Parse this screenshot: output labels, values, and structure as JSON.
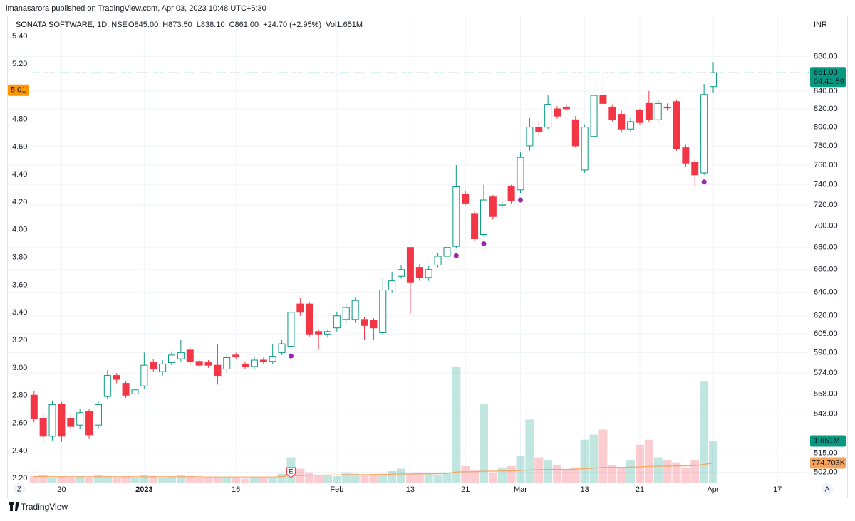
{
  "header": "imanasarora published on TradingView.com, Apr 03, 2023 10:48 UTC+5:30",
  "footer": "TradingView",
  "chart_data": {
    "type": "candlestick",
    "legend": {
      "symbol": "SONATA SOFTWARE, 1D, NSE",
      "open": "O845.00",
      "high": "H873.50",
      "low": "L838.10",
      "close": "C861.00",
      "change": "+24.70 (+2.95%)",
      "volume": "Vol1.651M"
    },
    "currency": "INR",
    "left_button": "Z",
    "right_button": "A",
    "log_scale": true,
    "grid": true,
    "up_color": "#089981",
    "down_color": "#f23645",
    "xlim": [
      -2,
      84.4
    ],
    "xticks": [
      {
        "value": 3,
        "label": "20"
      },
      {
        "value": 12,
        "label": "2023"
      },
      {
        "value": 22,
        "label": "16"
      },
      {
        "value": 33,
        "label": "Feb"
      },
      {
        "value": 41,
        "label": "13"
      },
      {
        "value": 47,
        "label": "21"
      },
      {
        "value": 53,
        "label": "Mar"
      },
      {
        "value": 60,
        "label": "13"
      },
      {
        "value": 66,
        "label": "21"
      },
      {
        "value": 74,
        "label": "Apr"
      },
      {
        "value": 81,
        "label": "17"
      }
    ],
    "ylim": [
      495,
      930
    ],
    "yticks": [
      {
        "value": 880,
        "label": "880.00"
      },
      {
        "value": 840,
        "label": "840.00"
      },
      {
        "value": 820,
        "label": "820.00"
      },
      {
        "value": 800,
        "label": "800.00"
      },
      {
        "value": 780,
        "label": "780.00"
      },
      {
        "value": 760,
        "label": "760.00"
      },
      {
        "value": 740,
        "label": "740.00"
      },
      {
        "value": 720,
        "label": "720.00"
      },
      {
        "value": 700,
        "label": "700.00"
      },
      {
        "value": 680,
        "label": "680.00"
      },
      {
        "value": 660,
        "label": "660.00"
      },
      {
        "value": 640,
        "label": "640.00"
      },
      {
        "value": 620,
        "label": "620.00"
      },
      {
        "value": 605,
        "label": "605.00"
      },
      {
        "value": 590,
        "label": "590.00"
      },
      {
        "value": 574,
        "label": "574.00"
      },
      {
        "value": 558,
        "label": "558.00"
      },
      {
        "value": 543,
        "label": "543.00"
      },
      {
        "value": 515,
        "label": "515.00"
      },
      {
        "value": 502,
        "label": "502.00"
      }
    ],
    "left_ylim": [
      2.17,
      5.55
    ],
    "left_yticks": [
      {
        "value": 5.4,
        "label": "5.40"
      },
      {
        "value": 5.2,
        "label": "5.20"
      },
      {
        "value": 4.8,
        "label": "4.80"
      },
      {
        "value": 4.6,
        "label": "4.60"
      },
      {
        "value": 4.4,
        "label": "4.40"
      },
      {
        "value": 4.2,
        "label": "4.20"
      },
      {
        "value": 4.0,
        "label": "4.00"
      },
      {
        "value": 3.8,
        "label": "3.80"
      },
      {
        "value": 3.6,
        "label": "3.60"
      },
      {
        "value": 3.4,
        "label": "3.40"
      },
      {
        "value": 3.2,
        "label": "3.20"
      },
      {
        "value": 3.0,
        "label": "3.00"
      },
      {
        "value": 2.8,
        "label": "2.80"
      },
      {
        "value": 2.6,
        "label": "2.60"
      },
      {
        "value": 2.4,
        "label": "2.40"
      },
      {
        "value": 2.2,
        "label": "2.20"
      }
    ],
    "left_current": {
      "value": 5.01,
      "label": "5.01"
    },
    "open": [
      557,
      540,
      527,
      550,
      540,
      535,
      545,
      535,
      556,
      572,
      566,
      558,
      564,
      582,
      575,
      582,
      585,
      592,
      583,
      582,
      580,
      577,
      588,
      581,
      579,
      584,
      583,
      590,
      595,
      630,
      630,
      607,
      605,
      610,
      617,
      617,
      617,
      616,
      606,
      642,
      654,
      680,
      662,
      653,
      664,
      672,
      681,
      731,
      712,
      692,
      728,
      720,
      738,
      735,
      780,
      800,
      800,
      820,
      822,
      808,
      755,
      790,
      835,
      822,
      814,
      798,
      818,
      826,
      808,
      822,
      828,
      778,
      763,
      752,
      845
    ],
    "high": [
      560,
      543,
      553,
      552,
      543,
      547,
      547,
      553,
      576,
      574,
      568,
      563,
      590,
      585,
      584,
      591,
      600,
      594,
      585,
      584,
      597,
      589,
      590,
      583,
      587,
      586,
      597,
      600,
      632,
      635,
      632,
      609,
      609,
      623,
      630,
      636,
      619,
      618,
      652,
      658,
      664,
      680,
      665,
      663,
      675,
      684,
      760,
      734,
      714,
      740,
      730,
      724,
      740,
      773,
      810,
      806,
      835,
      823,
      825,
      812,
      803,
      850,
      860,
      825,
      818,
      810,
      820,
      840,
      830,
      826,
      830,
      781,
      766,
      848,
      873.5
    ],
    "low": [
      537,
      522,
      524,
      523,
      530,
      532,
      525,
      532,
      554,
      566,
      555,
      556,
      562,
      575,
      572,
      580,
      583,
      580,
      577,
      578,
      565,
      574,
      585,
      577,
      577,
      581,
      581,
      588,
      593,
      620,
      603,
      592,
      602,
      607,
      614,
      614,
      600,
      600,
      604,
      640,
      652,
      622,
      650,
      650,
      662,
      670,
      679,
      720,
      686,
      690,
      706,
      717,
      721,
      732,
      775,
      791,
      798,
      809,
      818,
      778,
      752,
      788,
      823,
      806,
      794,
      795,
      802,
      805,
      806,
      818,
      775,
      758,
      738,
      750,
      838.1
    ],
    "close": [
      540,
      527,
      550,
      527,
      534,
      544,
      528,
      550,
      572,
      569,
      557,
      561,
      580,
      577,
      581,
      588,
      590,
      583,
      580,
      580,
      572,
      586,
      587,
      579,
      584,
      583,
      587,
      597,
      623,
      623,
      605,
      605,
      607,
      620,
      627,
      633,
      612,
      610,
      642,
      650,
      660,
      649,
      653,
      660,
      672,
      680,
      738,
      722,
      688,
      725,
      709,
      721,
      724,
      768,
      800,
      795,
      825,
      812,
      820,
      780,
      800,
      835,
      826,
      808,
      798,
      806,
      805,
      808,
      826,
      821,
      777,
      762,
      750,
      836,
      861
    ],
    "close_label": "861.00",
    "countdown": "04:41:59",
    "volume_ylim": [
      0,
      18.5
    ],
    "volume": [
      0.25,
      0.3,
      0.2,
      0.25,
      0.2,
      0.25,
      0.2,
      0.3,
      0.25,
      0.2,
      0.25,
      0.2,
      0.3,
      0.25,
      0.2,
      0.25,
      0.3,
      0.25,
      0.2,
      0.2,
      0.2,
      0.2,
      0.2,
      0.15,
      0.2,
      0.2,
      0.2,
      0.35,
      1.0,
      0.55,
      0.4,
      0.3,
      0.3,
      0.25,
      0.4,
      0.35,
      0.3,
      0.3,
      0.35,
      0.45,
      0.55,
      0.35,
      0.4,
      0.35,
      0.3,
      0.4,
      4.6,
      0.65,
      0.5,
      3.1,
      0.4,
      0.6,
      0.65,
      1.05,
      2.5,
      1.0,
      0.9,
      0.7,
      0.5,
      0.6,
      1.7,
      1.9,
      2.1,
      0.7,
      0.6,
      0.9,
      1.5,
      1.7,
      1.0,
      0.9,
      0.8,
      0.6,
      0.9,
      4.0,
      1.651
    ],
    "volume_ma": [
      0.24,
      0.24,
      0.23,
      0.23,
      0.23,
      0.23,
      0.23,
      0.23,
      0.23,
      0.23,
      0.23,
      0.23,
      0.23,
      0.23,
      0.23,
      0.23,
      0.23,
      0.23,
      0.23,
      0.22,
      0.22,
      0.22,
      0.22,
      0.22,
      0.22,
      0.22,
      0.22,
      0.24,
      0.27,
      0.28,
      0.29,
      0.29,
      0.3,
      0.3,
      0.31,
      0.31,
      0.31,
      0.32,
      0.32,
      0.33,
      0.34,
      0.34,
      0.35,
      0.35,
      0.35,
      0.36,
      0.42,
      0.43,
      0.43,
      0.45,
      0.45,
      0.46,
      0.46,
      0.48,
      0.5,
      0.51,
      0.52,
      0.52,
      0.52,
      0.53,
      0.55,
      0.57,
      0.6,
      0.6,
      0.6,
      0.61,
      0.62,
      0.64,
      0.65,
      0.65,
      0.66,
      0.66,
      0.67,
      0.72,
      0.774703
    ],
    "volume_label": "1.651M",
    "volume_ma_label": "774.703K",
    "volume_ma_color": "#f7a35c",
    "dot_color": "#9c27b0",
    "dot_indices": [
      28,
      46,
      49,
      53,
      73
    ],
    "earnings_index": 28,
    "earnings_label": "E"
  }
}
